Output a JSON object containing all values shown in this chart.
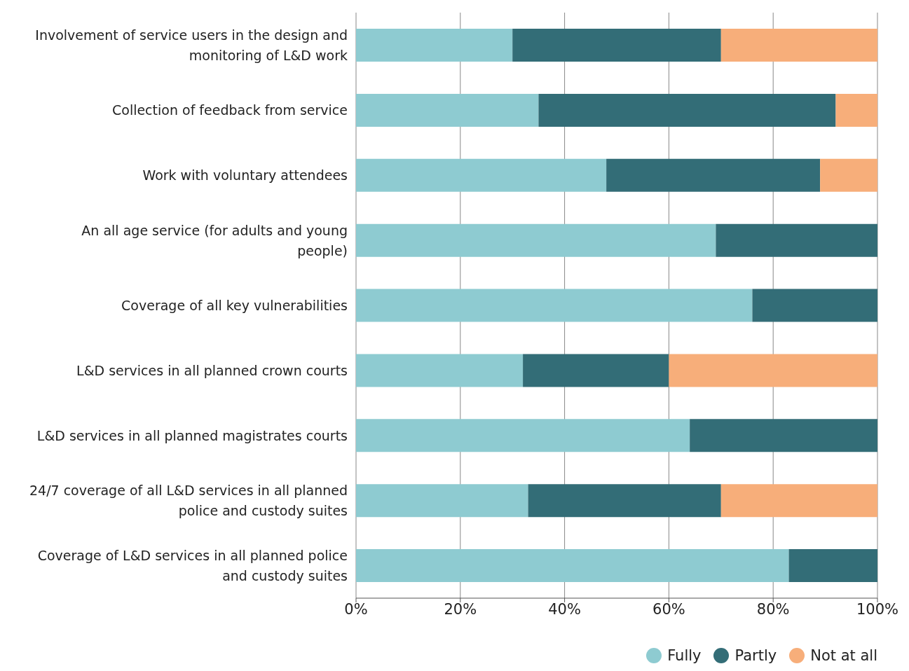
{
  "chart_data": {
    "type": "bar",
    "orientation": "horizontal",
    "stacked": true,
    "categories": [
      "Involvement of service users in the design and monitoring of L&D work",
      "Collection of feedback from service",
      "Work with voluntary attendees",
      "An all age service (for adults and young people)",
      "Coverage of all key vulnerabilities",
      "L&D services in all planned crown courts",
      "L&D services in all planned magistrates courts",
      "24/7 coverage of all L&D services in all planned police and custody suites",
      "Coverage of L&D services in all planned police and custody suites"
    ],
    "series": [
      {
        "name": "Fully",
        "color": "#8ecbd1",
        "values": [
          30,
          35,
          48,
          69,
          76,
          32,
          64,
          33,
          83
        ]
      },
      {
        "name": "Partly",
        "color": "#336d77",
        "values": [
          40,
          57,
          41,
          31,
          24,
          28,
          36,
          37,
          17
        ]
      },
      {
        "name": "Not at all",
        "color": "#f7ae7a",
        "values": [
          30,
          8,
          11,
          0,
          0,
          40,
          0,
          30,
          0
        ]
      }
    ],
    "xlim": [
      0,
      100
    ],
    "xticks": [
      {
        "value": 0,
        "label": "0%"
      },
      {
        "value": 20,
        "label": "20%"
      },
      {
        "value": 40,
        "label": "40%"
      },
      {
        "value": 60,
        "label": "60%"
      },
      {
        "value": 80,
        "label": "80%"
      },
      {
        "value": 100,
        "label": "100%"
      }
    ],
    "grid": "x",
    "legend": "bottom right"
  }
}
